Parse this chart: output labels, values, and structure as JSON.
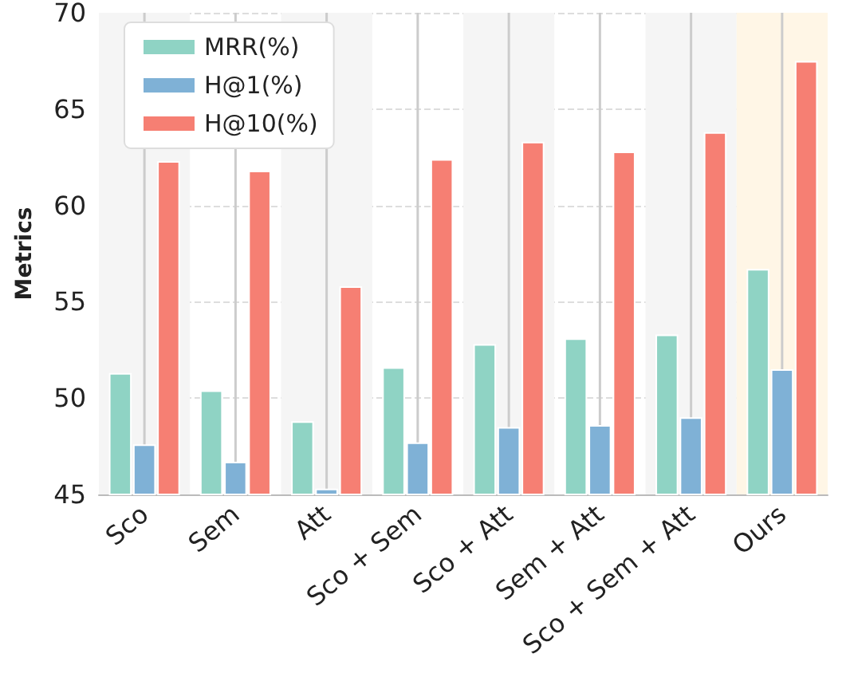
{
  "chart_data": {
    "type": "bar",
    "ylabel": "Metrics",
    "categories": [
      "Sco",
      "Sem",
      "Att",
      "Sco + Sem",
      "Sco + Att",
      "Sem + Att",
      "Sco + Sem + Att",
      "Ours"
    ],
    "series": [
      {
        "name": "MRR(%)",
        "color": "#8fd3c4",
        "values": [
          51.3,
          50.4,
          48.8,
          51.6,
          52.8,
          53.1,
          53.3,
          56.7
        ]
      },
      {
        "name": "H@1(%)",
        "color": "#7fb1d6",
        "values": [
          47.6,
          46.7,
          45.3,
          47.7,
          48.5,
          48.6,
          49.0,
          51.5
        ]
      },
      {
        "name": "H@10(%)",
        "color": "#f67f73",
        "values": [
          62.3,
          61.8,
          55.8,
          62.4,
          63.3,
          62.8,
          63.8,
          67.5
        ]
      }
    ],
    "ylim": [
      45,
      70
    ],
    "yticks": [
      45,
      50,
      55,
      60,
      65,
      70
    ],
    "grid": true,
    "legend": "top left",
    "bands": [
      {
        "axis": "x",
        "from": "Sco",
        "to": "Sco",
        "color": "#f5f5f5"
      },
      {
        "axis": "x",
        "from": "Att",
        "to": "Att",
        "color": "#f5f5f5"
      },
      {
        "axis": "x",
        "from": "Sco + Att",
        "to": "Sco + Att",
        "color": "#f5f5f5"
      },
      {
        "axis": "x",
        "from": "Sco + Sem + Att",
        "to": "Sco + Sem + Att",
        "color": "#f5f5f5"
      },
      {
        "axis": "x",
        "from": "Ours",
        "to": "Ours",
        "color": "#fff6e6"
      }
    ]
  }
}
